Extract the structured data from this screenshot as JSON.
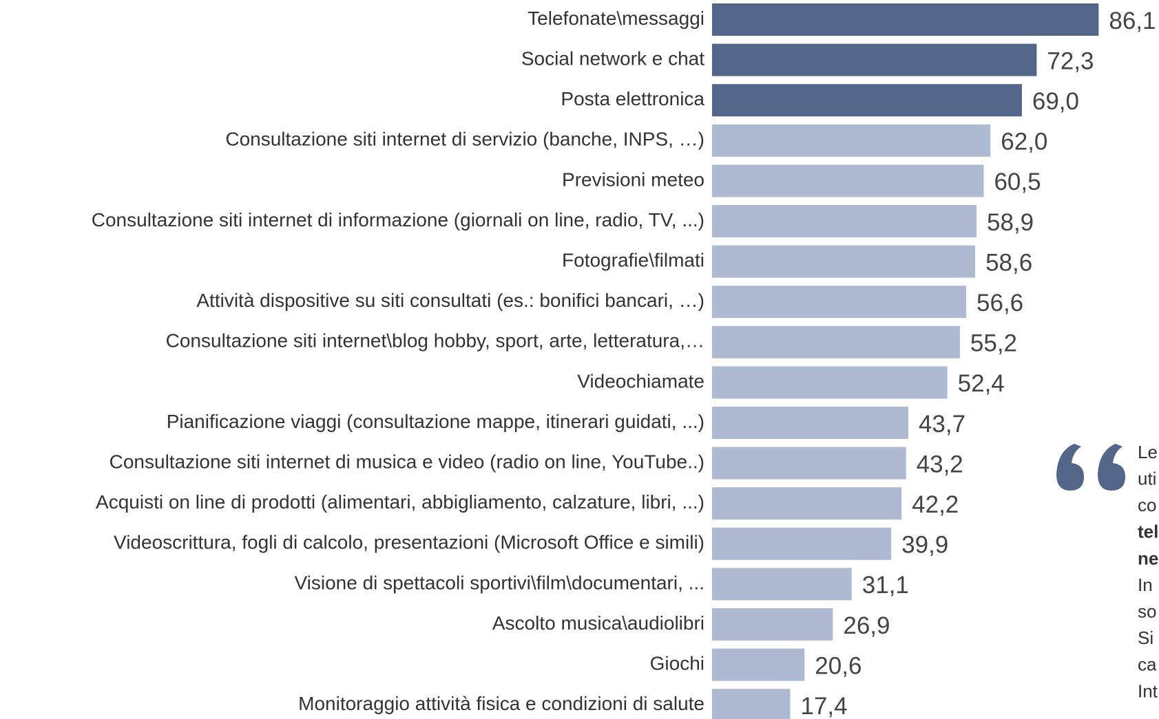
{
  "chart_data": {
    "type": "barh",
    "categories": [
      "Telefonate\\messaggi",
      "Social network e chat",
      "Posta elettronica",
      "Consultazione siti internet di servizio (banche, INPS, …)",
      "Previsioni meteo",
      "Consultazione siti internet di informazione (giornali on line, radio, TV, ...)",
      "Fotografie\\filmati",
      "Attività dispositive su siti consultati (es.: bonifici bancari, …)",
      "Consultazione siti internet\\blog hobby, sport, arte, letteratura,…",
      "Videochiamate",
      "Pianificazione viaggi (consultazione mappe, itinerari guidati, ...)",
      "Consultazione siti internet di musica e video (radio on line, YouTube..)",
      "Acquisti on line di prodotti (alimentari, abbigliamento, calzature, libri, ...)",
      "Videoscrittura, fogli di calcolo, presentazioni (Microsoft Office e simili)",
      "Visione di spettacoli sportivi\\film\\documentari, ...",
      "Ascolto musica\\audiolibri",
      "Giochi",
      "Monitoraggio attività fisica e condizioni di salute"
    ],
    "values": [
      86.1,
      72.3,
      69.0,
      62.0,
      60.5,
      58.9,
      58.6,
      56.6,
      55.2,
      52.4,
      43.7,
      43.2,
      42.2,
      39.9,
      31.1,
      26.9,
      20.6,
      17.4
    ],
    "value_labels": [
      "86,1",
      "72,3",
      "69,0",
      "62,0",
      "60,5",
      "58,9",
      "58,6",
      "56,6",
      "55,2",
      "52,4",
      "43,7",
      "43,2",
      "42,2",
      "39,9",
      "31,1",
      "26,9",
      "20,6",
      "17,4"
    ],
    "colors": [
      "#536689",
      "#536689",
      "#536689",
      "#adbad2",
      "#adbad2",
      "#adbad2",
      "#adbad2",
      "#adbad2",
      "#adbad2",
      "#adbad2",
      "#adbad2",
      "#adbad2",
      "#adbad2",
      "#adbad2",
      "#adbad2",
      "#adbad2",
      "#adbad2",
      "#adbad2"
    ]
  },
  "quote": {
    "lines": [
      {
        "text": "Le",
        "bold": false
      },
      {
        "text": "uti",
        "bold": false
      },
      {
        "text": "co",
        "bold": false
      },
      {
        "text": "tel",
        "bold": true
      },
      {
        "text": "ne",
        "bold": true
      },
      {
        "text": "In",
        "bold": false
      },
      {
        "text": "so",
        "bold": false
      },
      {
        "text": "Si",
        "bold": false
      },
      {
        "text": "ca",
        "bold": false
      },
      {
        "text": "Int",
        "bold": false
      }
    ]
  }
}
